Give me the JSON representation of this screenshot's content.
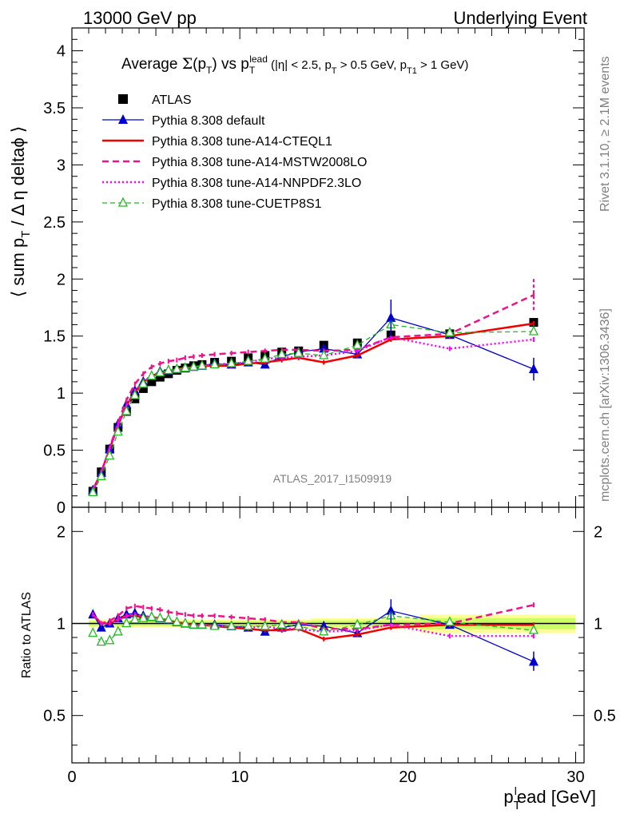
{
  "header": {
    "left": "13000 GeV pp",
    "right": "Underlying Event",
    "title": "Average Σ(pT) vs pT^lead (|η| < 2.5, pT > 0.5 GeV, pT1 > 1 GeV)",
    "analysis": "ATLAS_2017_I1509919",
    "side_rivet": "Rivet 3.1.10, ≥ 2.1M events",
    "side_mcplots": "mcplots.cern.ch [arXiv:1306.3436]"
  },
  "colors": {
    "atlas": "#000000",
    "default": "#0000cc",
    "cteql1": "#ee0000",
    "mstw": "#ee1188",
    "nnpdf": "#ff00ff",
    "cuetp8s1": "#22bb22",
    "band_inner": "#ccff66",
    "band_outer": "#ffff99"
  },
  "chart_data": [
    {
      "type": "line",
      "title": "Average Σ(pT) vs pT^lead (|η| < 2.5, pT > 0.5 GeV, pT1 > 1 GeV)",
      "xlabel": "pT lead [GeV]",
      "ylabel": "⟨ sum pT / Δη deltaφ ⟩",
      "xlim": [
        0,
        30.5
      ],
      "ylim": [
        0,
        4.2
      ],
      "yticks": [
        "0",
        "0.5",
        "1",
        "1.5",
        "2",
        "2.5",
        "3",
        "3.5",
        "4"
      ],
      "legend_position": "top-left",
      "x": [
        1.25,
        1.75,
        2.25,
        2.75,
        3.25,
        3.75,
        4.25,
        4.75,
        5.25,
        5.75,
        6.25,
        6.75,
        7.25,
        7.75,
        8.5,
        9.5,
        10.5,
        11.5,
        12.5,
        13.5,
        15,
        17,
        19,
        22.5,
        27.5
      ],
      "series": [
        {
          "name": "ATLAS",
          "style": "points",
          "values": [
            0.14,
            0.31,
            0.51,
            0.7,
            0.84,
            0.95,
            1.04,
            1.1,
            1.14,
            1.17,
            1.2,
            1.22,
            1.24,
            1.25,
            1.27,
            1.28,
            1.31,
            1.33,
            1.36,
            1.37,
            1.42,
            1.44,
            1.51,
            1.52,
            1.62
          ]
        },
        {
          "name": "Pythia 8.308 default",
          "style": "solid-triangles",
          "values": [
            0.15,
            0.3,
            0.51,
            0.73,
            0.9,
            1.02,
            1.1,
            1.15,
            1.19,
            1.2,
            1.21,
            1.22,
            1.23,
            1.24,
            1.26,
            1.25,
            1.27,
            1.25,
            1.32,
            1.36,
            1.39,
            1.34,
            1.66,
            1.51,
            1.21
          ]
        },
        {
          "name": "Pythia 8.308 tune-A14-CTEQL1",
          "style": "solid",
          "values": [
            0.15,
            0.31,
            0.51,
            0.72,
            0.89,
            1.01,
            1.09,
            1.15,
            1.18,
            1.19,
            1.21,
            1.22,
            1.23,
            1.24,
            1.24,
            1.24,
            1.26,
            1.27,
            1.29,
            1.31,
            1.27,
            1.33,
            1.47,
            1.5,
            1.61
          ]
        },
        {
          "name": "Pythia 8.308 tune-A14-MSTW2008LO",
          "style": "dashed",
          "values": [
            0.15,
            0.31,
            0.52,
            0.74,
            0.94,
            1.08,
            1.17,
            1.23,
            1.26,
            1.28,
            1.29,
            1.31,
            1.32,
            1.33,
            1.34,
            1.35,
            1.36,
            1.37,
            1.38,
            1.38,
            1.37,
            1.38,
            1.49,
            1.52,
            1.86
          ]
        },
        {
          "name": "Pythia 8.308 tune-A14-NNPDF2.3LO",
          "style": "dotted",
          "values": [
            0.15,
            0.31,
            0.51,
            0.72,
            0.89,
            1.02,
            1.1,
            1.15,
            1.18,
            1.19,
            1.2,
            1.21,
            1.22,
            1.24,
            1.25,
            1.26,
            1.27,
            1.3,
            1.31,
            1.32,
            1.33,
            1.37,
            1.49,
            1.39,
            1.47
          ]
        },
        {
          "name": "Pythia 8.308 tune-CUETP8S1",
          "style": "dashed-open-triangles",
          "values": [
            0.13,
            0.27,
            0.45,
            0.66,
            0.84,
            0.98,
            1.08,
            1.15,
            1.18,
            1.2,
            1.21,
            1.22,
            1.23,
            1.24,
            1.25,
            1.26,
            1.28,
            1.3,
            1.34,
            1.35,
            1.33,
            1.42,
            1.6,
            1.53,
            1.54
          ]
        }
      ]
    },
    {
      "type": "line",
      "ylabel": "Ratio to ATLAS",
      "xlabel": "pT lead [GeV]",
      "xlim": [
        0,
        30.5
      ],
      "ylim": [
        0.35,
        2.4
      ],
      "yscale": "log",
      "xticks": [
        "0",
        "10",
        "20",
        "30"
      ],
      "yticks": [
        "0.5",
        "1",
        "2"
      ],
      "series": [
        {
          "name": "Pythia 8.308 default",
          "values": [
            1.07,
            0.97,
            1.0,
            1.04,
            1.07,
            1.08,
            1.06,
            1.05,
            1.04,
            1.03,
            1.01,
            1.0,
            0.99,
            0.99,
            0.99,
            0.98,
            0.97,
            0.94,
            0.97,
            0.99,
            0.98,
            0.93,
            1.1,
            0.99,
            0.75
          ]
        },
        {
          "name": "Pythia 8.308 tune-A14-CTEQL1",
          "values": [
            1.07,
            1.0,
            1.0,
            1.03,
            1.06,
            1.06,
            1.05,
            1.05,
            1.04,
            1.02,
            1.01,
            1.0,
            0.99,
            0.99,
            0.98,
            0.97,
            0.96,
            0.95,
            0.95,
            0.96,
            0.89,
            0.92,
            0.97,
            0.99,
            0.99
          ]
        },
        {
          "name": "Pythia 8.308 tune-A14-MSTW2008LO",
          "values": [
            1.07,
            1.0,
            1.02,
            1.06,
            1.12,
            1.14,
            1.13,
            1.12,
            1.11,
            1.09,
            1.08,
            1.07,
            1.06,
            1.06,
            1.06,
            1.05,
            1.04,
            1.03,
            1.01,
            1.01,
            0.96,
            0.96,
            0.99,
            1.0,
            1.15
          ]
        },
        {
          "name": "Pythia 8.308 tune-A14-NNPDF2.3LO",
          "values": [
            1.07,
            1.0,
            1.0,
            1.03,
            1.06,
            1.07,
            1.06,
            1.05,
            1.04,
            1.02,
            1.0,
            0.99,
            0.98,
            0.99,
            0.98,
            0.98,
            0.97,
            0.98,
            0.96,
            0.96,
            0.94,
            0.95,
            0.99,
            0.91,
            0.91
          ]
        },
        {
          "name": "Pythia 8.308 tune-CUETP8S1",
          "values": [
            0.93,
            0.87,
            0.88,
            0.94,
            1.0,
            1.03,
            1.04,
            1.05,
            1.04,
            1.03,
            1.01,
            1.0,
            0.99,
            0.99,
            0.98,
            0.98,
            0.98,
            0.98,
            0.99,
            0.98,
            0.94,
            0.99,
            1.06,
            1.01,
            0.95
          ]
        }
      ]
    }
  ]
}
